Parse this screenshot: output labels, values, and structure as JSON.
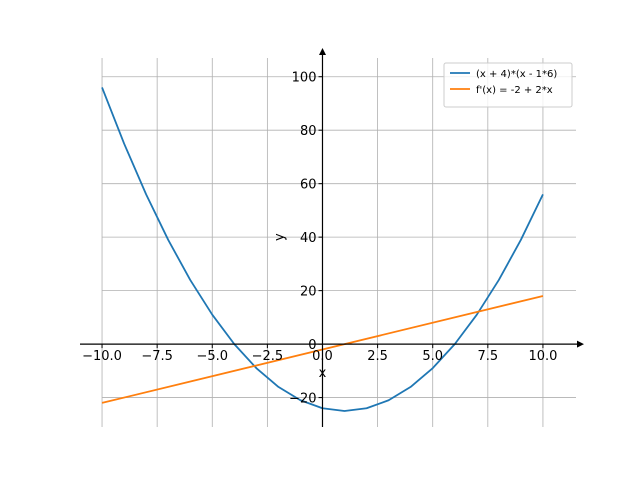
{
  "chart_data": {
    "type": "line",
    "title": "",
    "xlabel": "x",
    "ylabel": "y",
    "xlim": [
      -11,
      11.5
    ],
    "ylim": [
      -31,
      107
    ],
    "grid": true,
    "legend_position": "top-right",
    "x_ticks": [
      -10.0,
      -7.5,
      -5.0,
      -2.5,
      0.0,
      2.5,
      5.0,
      7.5,
      10.0
    ],
    "x_tick_labels": [
      "−10.0",
      "−7.5",
      "−5.0",
      "−2.5",
      "0.0",
      "2.5",
      "5.0",
      "7.5",
      "10.0"
    ],
    "y_ticks": [
      -20,
      0,
      20,
      40,
      60,
      80,
      100
    ],
    "y_tick_labels": [
      "−20",
      "0",
      "20",
      "40",
      "60",
      "80",
      "100"
    ],
    "series": [
      {
        "name": "(x + 4)*(x - 1*6)",
        "color": "#1f77b4",
        "x": [
          -10,
          -9,
          -8,
          -7,
          -6,
          -5,
          -4,
          -3,
          -2,
          -1,
          0,
          1,
          2,
          3,
          4,
          5,
          6,
          7,
          8,
          9,
          10
        ],
        "y": [
          96,
          75,
          56,
          39,
          24,
          11,
          0,
          -9,
          -16,
          -21,
          -24,
          -25,
          -24,
          -21,
          -16,
          -9,
          0,
          11,
          24,
          39,
          56
        ]
      },
      {
        "name": "f'(x) = -2 + 2*x",
        "color": "#ff7f0e",
        "x": [
          -10,
          10
        ],
        "y": [
          -22,
          18
        ]
      }
    ]
  }
}
